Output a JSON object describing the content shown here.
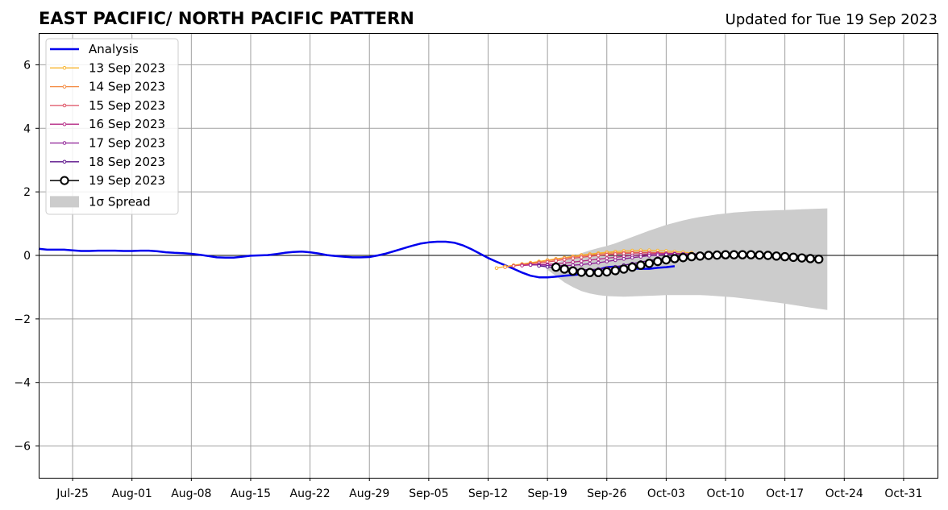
{
  "chart_data": {
    "type": "line",
    "title": "EAST PACIFIC/ NORTH PACIFIC PATTERN",
    "subtitle": "Updated for Tue 19 Sep 2023",
    "xlabel": "",
    "ylabel": "",
    "xlim": [
      "2023-07-21",
      "2023-11-04"
    ],
    "ylim": [
      -7,
      7
    ],
    "grid": true,
    "legend_position": "upper-left",
    "x_ticks": [
      "2023-07-25",
      "2023-08-01",
      "2023-08-08",
      "2023-08-15",
      "2023-08-22",
      "2023-08-29",
      "2023-09-05",
      "2023-09-12",
      "2023-09-19",
      "2023-09-26",
      "2023-10-03",
      "2023-10-10",
      "2023-10-17",
      "2023-10-24",
      "2023-10-31"
    ],
    "x_tick_labels": [
      "Jul-25",
      "Aug-01",
      "Aug-08",
      "Aug-15",
      "Aug-22",
      "Aug-29",
      "Sep-05",
      "Sep-12",
      "Sep-19",
      "Sep-26",
      "Oct-03",
      "Oct-10",
      "Oct-17",
      "Oct-24",
      "Oct-31"
    ],
    "y_ticks": [
      -6,
      -4,
      -2,
      0,
      2,
      4,
      6
    ],
    "y_tick_labels": [
      "−6",
      "−4",
      "−2",
      "0",
      "2",
      "4",
      "6"
    ],
    "analysis": {
      "name": "Analysis",
      "color": "#0000ee",
      "start": "2023-07-21",
      "values": [
        0.21,
        0.18,
        0.18,
        0.18,
        0.16,
        0.14,
        0.14,
        0.15,
        0.15,
        0.15,
        0.14,
        0.14,
        0.15,
        0.15,
        0.13,
        0.1,
        0.08,
        0.07,
        0.05,
        0.02,
        -0.02,
        -0.06,
        -0.07,
        -0.07,
        -0.04,
        -0.01,
        0.0,
        0.01,
        0.04,
        0.08,
        0.11,
        0.12,
        0.1,
        0.06,
        0.01,
        -0.02,
        -0.04,
        -0.06,
        -0.06,
        -0.05,
        0.0,
        0.06,
        0.14,
        0.22,
        0.3,
        0.37,
        0.41,
        0.43,
        0.43,
        0.4,
        0.32,
        0.2,
        0.06,
        -0.08,
        -0.2,
        -0.31,
        -0.42,
        -0.54,
        -0.64,
        -0.69,
        -0.69,
        -0.67,
        -0.64,
        -0.62,
        -0.59,
        -0.53,
        -0.45,
        -0.37,
        -0.35,
        -0.38,
        -0.41,
        -0.42,
        -0.42,
        -0.39,
        -0.37,
        -0.34
      ]
    },
    "forecasts": [
      {
        "name": "13 Sep 2023",
        "color": "#f8b42e",
        "start": "2023-09-13",
        "values": [
          -0.4,
          -0.35,
          -0.31,
          -0.27,
          -0.23,
          -0.19,
          -0.15,
          -0.11,
          -0.07,
          -0.03,
          0.01,
          0.04,
          0.07,
          0.1,
          0.12,
          0.14,
          0.15,
          0.16,
          0.16,
          0.15,
          0.14,
          0.12,
          0.1,
          0.08
        ]
      },
      {
        "name": "14 Sep 2023",
        "color": "#f3883f",
        "start": "2023-09-14",
        "values": [
          -0.37,
          -0.33,
          -0.29,
          -0.25,
          -0.21,
          -0.17,
          -0.13,
          -0.09,
          -0.05,
          -0.02,
          0.01,
          0.04,
          0.06,
          0.08,
          0.09,
          0.1,
          0.1,
          0.1,
          0.09,
          0.08,
          0.07,
          0.05,
          0.03,
          0.01
        ]
      },
      {
        "name": "15 Sep 2023",
        "color": "#de4f62",
        "start": "2023-09-15",
        "values": [
          -0.33,
          -0.3,
          -0.27,
          -0.24,
          -0.21,
          -0.17,
          -0.13,
          -0.09,
          -0.06,
          -0.03,
          0.0,
          0.02,
          0.04,
          0.06,
          0.07,
          0.08,
          0.08,
          0.07,
          0.06,
          0.05,
          0.03,
          0.01,
          -0.01,
          -0.03
        ]
      },
      {
        "name": "16 Sep 2023",
        "color": "#b42a84",
        "start": "2023-09-16",
        "values": [
          -0.32,
          -0.3,
          -0.29,
          -0.28,
          -0.26,
          -0.24,
          -0.21,
          -0.18,
          -0.15,
          -0.12,
          -0.09,
          -0.06,
          -0.03,
          0.0,
          0.02,
          0.04,
          0.05,
          0.06,
          0.06,
          0.05,
          0.04,
          0.03,
          0.01,
          -0.01
        ]
      },
      {
        "name": "17 Sep 2023",
        "color": "#8c1c94",
        "start": "2023-09-17",
        "values": [
          -0.3,
          -0.3,
          -0.31,
          -0.32,
          -0.32,
          -0.31,
          -0.29,
          -0.26,
          -0.23,
          -0.19,
          -0.15,
          -0.11,
          -0.07,
          -0.04,
          -0.01,
          0.01,
          0.03,
          0.04,
          0.05,
          0.05,
          0.04,
          0.03,
          0.02,
          0.0
        ]
      },
      {
        "name": "18 Sep 2023",
        "color": "#5a108a",
        "start": "2023-09-18",
        "values": [
          -0.33,
          -0.36,
          -0.39,
          -0.42,
          -0.44,
          -0.45,
          -0.45,
          -0.43,
          -0.4,
          -0.36,
          -0.31,
          -0.26,
          -0.21,
          -0.16,
          -0.12,
          -0.08,
          -0.05,
          -0.02,
          0.0,
          0.01,
          0.01,
          0.0,
          -0.01,
          -0.03
        ]
      }
    ],
    "current": {
      "name": "19 Sep 2023",
      "color": "#000000",
      "start": "2023-09-20",
      "values": [
        -0.37,
        -0.43,
        -0.49,
        -0.53,
        -0.54,
        -0.54,
        -0.52,
        -0.48,
        -0.43,
        -0.37,
        -0.31,
        -0.25,
        -0.19,
        -0.14,
        -0.1,
        -0.07,
        -0.04,
        -0.02,
        0.0,
        0.01,
        0.02,
        0.02,
        0.02,
        0.02,
        0.01,
        0.0,
        -0.02,
        -0.04,
        -0.06,
        -0.08,
        -0.1,
        -0.12
      ]
    },
    "spread": {
      "name": "1σ Spread",
      "color": "#cccccc",
      "start": "2023-09-19",
      "upper": [
        -0.35,
        -0.25,
        -0.14,
        -0.03,
        0.07,
        0.16,
        0.23,
        0.3,
        0.38,
        0.48,
        0.58,
        0.68,
        0.78,
        0.87,
        0.96,
        1.03,
        1.1,
        1.16,
        1.21,
        1.25,
        1.29,
        1.32,
        1.35,
        1.37,
        1.39,
        1.4,
        1.41,
        1.42,
        1.43,
        1.44,
        1.45,
        1.46,
        1.47,
        1.48
      ],
      "lower": [
        -0.45,
        -0.65,
        -0.85,
        -1.0,
        -1.12,
        -1.2,
        -1.25,
        -1.28,
        -1.29,
        -1.3,
        -1.29,
        -1.28,
        -1.27,
        -1.26,
        -1.25,
        -1.25,
        -1.25,
        -1.25,
        -1.25,
        -1.26,
        -1.28,
        -1.3,
        -1.32,
        -1.35,
        -1.38,
        -1.41,
        -1.45,
        -1.48,
        -1.52,
        -1.56,
        -1.6,
        -1.64,
        -1.68,
        -1.72
      ]
    }
  }
}
